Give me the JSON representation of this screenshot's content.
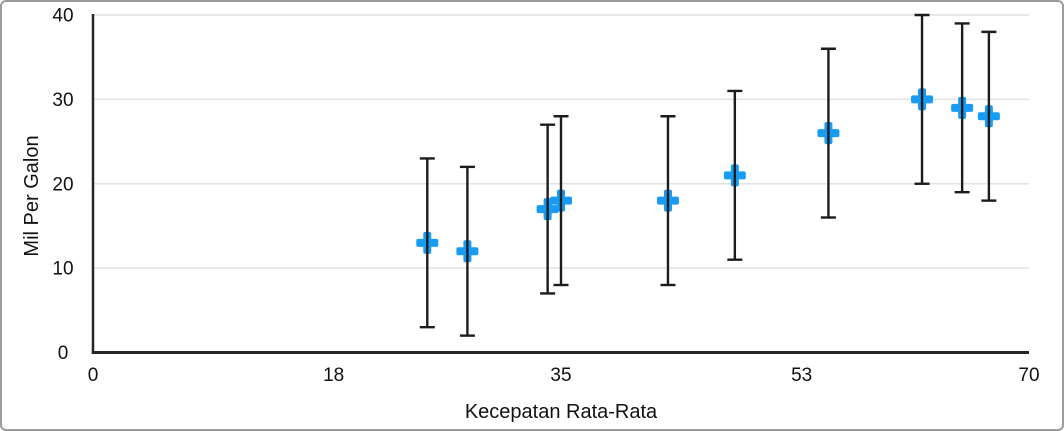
{
  "figure": {
    "background": "#ffffff",
    "border_color": "#9b9b9b"
  },
  "chart_data": {
    "type": "scatter",
    "title": "",
    "xlabel": "Kecepatan Rata-Rata",
    "ylabel": "Mil Per Galon",
    "xlim": [
      0,
      70
    ],
    "ylim": [
      0,
      40
    ],
    "x_ticks": [
      0,
      18,
      35,
      53,
      70
    ],
    "y_ticks": [
      0,
      10,
      20,
      30,
      40
    ],
    "grid": "horizontal gridlines on, vertical off",
    "legend_position": "none",
    "marker_shape": "plus",
    "error_bars": {
      "axis": "y",
      "mode": "fixed",
      "plus": 10,
      "minus": 10
    },
    "points": [
      {
        "x": 25,
        "y": 13
      },
      {
        "x": 28,
        "y": 12
      },
      {
        "x": 34,
        "y": 17
      },
      {
        "x": 35,
        "y": 18
      },
      {
        "x": 43,
        "y": 18
      },
      {
        "x": 48,
        "y": 21
      },
      {
        "x": 55,
        "y": 26
      },
      {
        "x": 62,
        "y": 30
      },
      {
        "x": 65,
        "y": 29
      },
      {
        "x": 67,
        "y": 28
      }
    ],
    "colors": {
      "marker": "#189bf2",
      "error_bar": "#1c1c1c",
      "axis": "#262626",
      "gridline": "#e2e2e2",
      "text": "#111111"
    }
  }
}
